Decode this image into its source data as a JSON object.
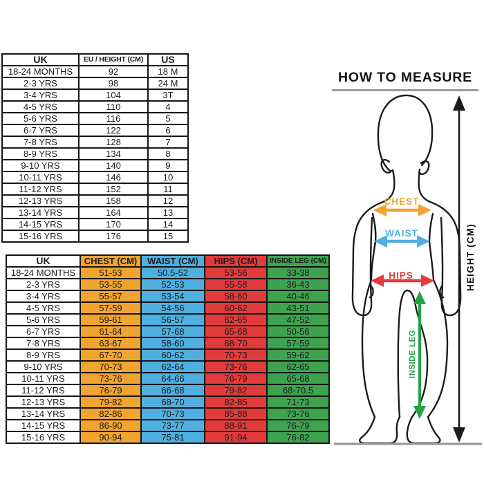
{
  "colors": {
    "chest": "#F2A430",
    "waist": "#4FAFE0",
    "hips": "#E23B3B",
    "insideleg": "#21A346",
    "ink": "#1B1B1B",
    "line": "#999999"
  },
  "age_size_table": {
    "headers": [
      "UK",
      "EU / HEIGHT (CM)",
      "US"
    ],
    "rows": [
      [
        "18-24 MONTHS",
        "92",
        "18 M"
      ],
      [
        "2-3 YRS",
        "98",
        "24 M"
      ],
      [
        "3-4 YRS",
        "104",
        "3T"
      ],
      [
        "4-5 YRS",
        "110",
        "4"
      ],
      [
        "5-6 YRS",
        "116",
        "5"
      ],
      [
        "6-7 YRS",
        "122",
        "6"
      ],
      [
        "7-8 YRS",
        "128",
        "7"
      ],
      [
        "8-9 YRS",
        "134",
        "8"
      ],
      [
        "9-10 YRS",
        "140",
        "9"
      ],
      [
        "10-11 YRS",
        "146",
        "10"
      ],
      [
        "11-12 YRS",
        "152",
        "11"
      ],
      [
        "12-13 YRS",
        "158",
        "12"
      ],
      [
        "13-14 YRS",
        "164",
        "13"
      ],
      [
        "14-15 YRS",
        "170",
        "14"
      ],
      [
        "15-16 YRS",
        "176",
        "15"
      ]
    ]
  },
  "body_size_table": {
    "headers": [
      "UK",
      "CHEST (CM)",
      "WAIST (CM)",
      "HIPS (CM)",
      "INSIDE LEG (CM)"
    ],
    "column_colors": [
      "#FFFFFF",
      "#F2A430",
      "#4FAFE0",
      "#E23B3B",
      "#3EA34F"
    ],
    "rows": [
      [
        "18-24 MONTHS",
        "51-53",
        "50.5-52",
        "53-56",
        "33-38"
      ],
      [
        "2-3 YRS",
        "53-55",
        "52-53",
        "55-58",
        "36-43"
      ],
      [
        "3-4 YRS",
        "55-57",
        "53-54",
        "58-60",
        "40-46"
      ],
      [
        "4-5 YRS",
        "57-59",
        "54-56",
        "60-62",
        "43-51"
      ],
      [
        "5-6 YRS",
        "59-61",
        "56-57",
        "62-65",
        "47-52"
      ],
      [
        "6-7 YRS",
        "61-64",
        "57-68",
        "65-68",
        "50-56"
      ],
      [
        "7-8 YRS",
        "63-67",
        "58-60",
        "68-70",
        "57-59"
      ],
      [
        "8-9 YRS",
        "67-70",
        "60-62",
        "70-73",
        "59-62"
      ],
      [
        "9-10 YRS",
        "70-73",
        "62-64",
        "73-76",
        "62-65"
      ],
      [
        "10-11 YRS",
        "73-76",
        "64-66",
        "76-79",
        "65-68"
      ],
      [
        "11-12 YRS",
        "76-79",
        "66-68",
        "79-82",
        "68-70.5"
      ],
      [
        "12-13 YRS",
        "79-82",
        "68-70",
        "82-85",
        "71-73"
      ],
      [
        "13-14 YRS",
        "82-86",
        "70-73",
        "85-88",
        "73-76"
      ],
      [
        "14-15 YRS",
        "86-90",
        "73-77",
        "88-91",
        "76-79"
      ],
      [
        "15-16 YRS",
        "90-94",
        "75-81",
        "91-94",
        "76-82"
      ]
    ]
  },
  "diagram": {
    "title": "HOW TO MEASURE",
    "labels": {
      "chest": "CHEST",
      "waist": "WAIST",
      "hips": "HIPS",
      "inside_leg": "INSIDE LEG",
      "height": "HEIGHT (CM)"
    }
  }
}
